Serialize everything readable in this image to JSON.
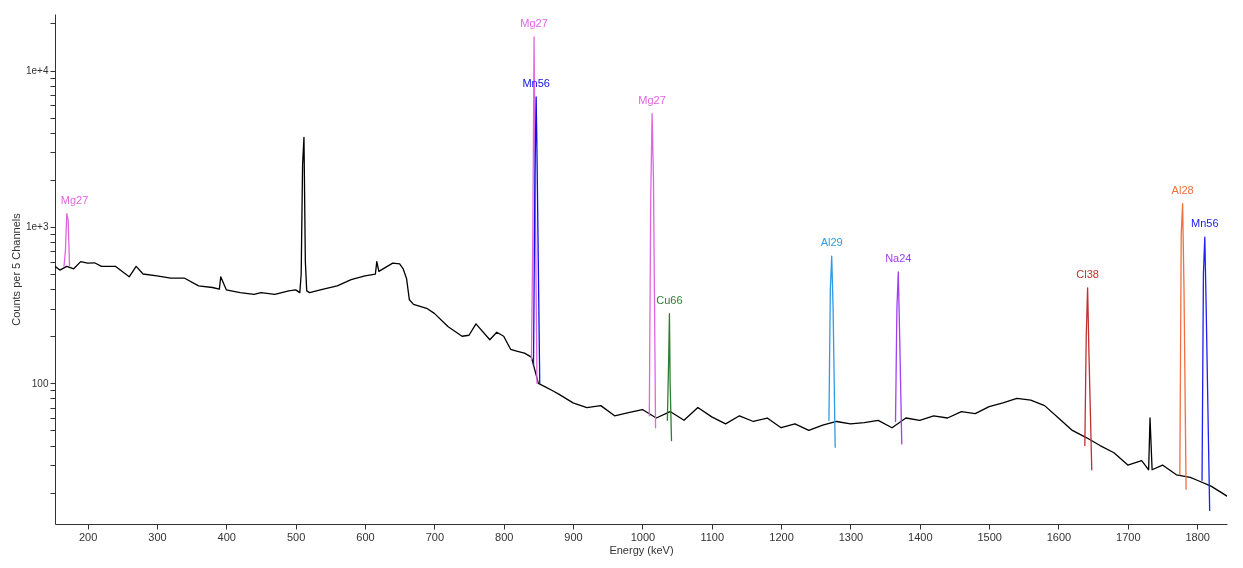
{
  "chart_data": {
    "type": "line",
    "xlabel": "Energy (keV)",
    "ylabel": "Counts per 5 Channels",
    "log": true,
    "xlim": [
      153,
      1843
    ],
    "ylim": [
      12.6,
      23000
    ],
    "xticks": [
      200,
      300,
      400,
      500,
      600,
      700,
      800,
      900,
      1000,
      1100,
      1200,
      1300,
      1400,
      1500,
      1600,
      1700,
      1800
    ],
    "yticks": [
      {
        "value": 20,
        "label": null
      },
      {
        "value": 30,
        "label": null
      },
      {
        "value": 40,
        "label": null
      },
      {
        "value": 50,
        "label": null
      },
      {
        "value": 60,
        "label": null
      },
      {
        "value": 70,
        "label": null
      },
      {
        "value": 80,
        "label": null
      },
      {
        "value": 90,
        "label": null
      },
      100,
      {
        "value": 200,
        "label": null
      },
      {
        "value": 300,
        "label": null
      },
      {
        "value": 400,
        "label": null
      },
      {
        "value": 500,
        "label": null
      },
      {
        "value": 600,
        "label": null
      },
      {
        "value": 700,
        "label": null
      },
      {
        "value": 800,
        "label": null
      },
      {
        "value": 900,
        "label": null
      },
      {
        "value": 1000,
        "label": "1e+3"
      },
      {
        "value": 2000,
        "label": null
      },
      {
        "value": 3000,
        "label": null
      },
      {
        "value": 4000,
        "label": null
      },
      {
        "value": 5000,
        "label": null
      },
      {
        "value": 6000,
        "label": null
      },
      {
        "value": 7000,
        "label": null
      },
      {
        "value": 8000,
        "label": null
      },
      {
        "value": 9000,
        "label": null
      },
      {
        "value": 10000,
        "label": "1e+4"
      },
      {
        "value": 20000,
        "label": null
      }
    ],
    "series": [
      {
        "color": "#000000",
        "x": [
          153,
          160,
          170,
          180,
          190,
          200,
          210,
          220,
          240,
          260,
          270,
          280,
          300,
          320,
          340,
          360,
          380,
          390,
          392,
          400,
          420,
          440,
          450,
          470,
          490,
          500,
          506,
          508,
          510,
          512,
          514,
          516,
          520,
          540,
          560,
          580,
          600,
          615,
          617,
          620,
          640,
          650,
          655,
          660,
          664,
          670,
          690,
          700,
          720,
          740,
          750,
          760,
          780,
          790,
          800,
          810,
          820,
          830,
          840,
          850,
          860,
          870,
          880,
          900,
          920,
          940,
          960,
          980,
          1000,
          1020,
          1040,
          1060,
          1080,
          1100,
          1120,
          1140,
          1160,
          1180,
          1200,
          1220,
          1240,
          1260,
          1280,
          1300,
          1320,
          1340,
          1360,
          1380,
          1400,
          1420,
          1440,
          1460,
          1480,
          1500,
          1520,
          1540,
          1560,
          1580,
          1600,
          1620,
          1640,
          1660,
          1680,
          1700,
          1720,
          1730,
          1732,
          1735,
          1750,
          1770,
          1790,
          1800,
          1820,
          1843
        ],
        "values": [
          560,
          530,
          560,
          540,
          600,
          587,
          590,
          560,
          560,
          480,
          560,
          500,
          486,
          470,
          470,
          420,
          410,
          400,
          480,
          396,
          380,
          370,
          380,
          370,
          390,
          396,
          380,
          500,
          2500,
          3740,
          600,
          390,
          380,
          400,
          420,
          460,
          486,
          500,
          600,
          520,
          587,
          580,
          540,
          466,
          342,
          320,
          300,
          280,
          230,
          200,
          203,
          240,
          190,
          212,
          200,
          165,
          160,
          156,
          147,
          100,
          95,
          90,
          85,
          75,
          70,
          72,
          62,
          65,
          68,
          60,
          66,
          58,
          70,
          61,
          55,
          62,
          57,
          60,
          52,
          55,
          50,
          54,
          57,
          55,
          56,
          58,
          52,
          60,
          58,
          62,
          60,
          66,
          64,
          71,
          75,
          80,
          78,
          72,
          60,
          50,
          45,
          40,
          36,
          30,
          32,
          28,
          60,
          28,
          30,
          26,
          25,
          24,
          22,
          19
        ]
      },
      {
        "name": "Mg27",
        "color": "#e066e0",
        "x": [
          166,
          168,
          170,
          172,
          174
        ],
        "values": [
          560,
          700,
          1216,
          1100,
          560
        ]
      },
      {
        "name": "Mg27",
        "color": "#e066e0",
        "x": [
          840,
          842,
          843.8,
          845,
          848
        ],
        "values": [
          140,
          900,
          16400,
          3000,
          100
        ]
      },
      {
        "name": "Mn56",
        "color": "#1010e0",
        "x": [
          843,
          845,
          846.8,
          848,
          852
        ],
        "values": [
          130,
          2000,
          6790,
          3000,
          100
        ]
      },
      {
        "name": "Mg27",
        "color": "#e066e0",
        "x": [
          1010,
          1012,
          1014,
          1016,
          1019
        ],
        "values": [
          62,
          1500,
          5310,
          2000,
          52
        ]
      },
      {
        "name": "Cu66",
        "color": "#2e7d32",
        "x": [
          1036,
          1038,
          1039,
          1040,
          1042
        ],
        "values": [
          58,
          150,
          279,
          100,
          43
        ]
      },
      {
        "name": "Al29",
        "color": "#2f9be0",
        "x": [
          1269,
          1271,
          1273,
          1275,
          1278
        ],
        "values": [
          58,
          400,
          650,
          300,
          39
        ]
      },
      {
        "name": "Na24",
        "color": "#a040f0",
        "x": [
          1365,
          1367,
          1369,
          1371,
          1374
        ],
        "values": [
          57,
          300,
          515,
          200,
          41
        ]
      },
      {
        "name": "Cl38",
        "color": "#c03030",
        "x": [
          1638,
          1640,
          1642,
          1644,
          1648
        ],
        "values": [
          40,
          200,
          408,
          150,
          28
        ]
      },
      {
        "name": "Al28",
        "color": "#f07040",
        "x": [
          1775,
          1777,
          1779,
          1781,
          1784
        ],
        "values": [
          26,
          900,
          1410,
          400,
          21
        ]
      },
      {
        "name": "Mn56",
        "color": "#2020f0",
        "x": [
          1807,
          1809,
          1811,
          1813,
          1818
        ],
        "values": [
          24,
          500,
          860,
          300,
          15.4
        ]
      }
    ]
  }
}
